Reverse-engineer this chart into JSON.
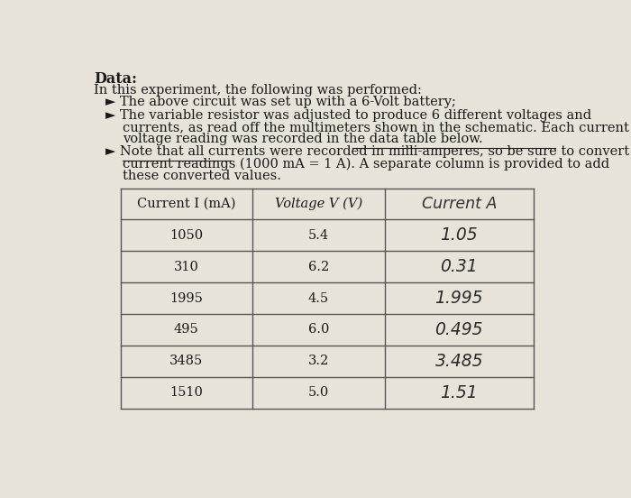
{
  "title": "Data:",
  "intro_text": "In this experiment, the following was performed:",
  "table_headers_printed": [
    "Current I (mA)",
    "Voltage V (V)"
  ],
  "table_header_handwritten": "Current A",
  "table_data": [
    [
      1050,
      5.4,
      "1.05"
    ],
    [
      310,
      6.2,
      "0.31"
    ],
    [
      1995,
      4.5,
      "1.995"
    ],
    [
      495,
      6.0,
      "0.495"
    ],
    [
      3485,
      3.2,
      "3.485"
    ],
    [
      1510,
      5.0,
      "1.51"
    ]
  ],
  "bg_color": "#e8e3d8",
  "text_color": "#1a1a1a",
  "font_size_body": 10.5,
  "font_size_title": 11.5
}
